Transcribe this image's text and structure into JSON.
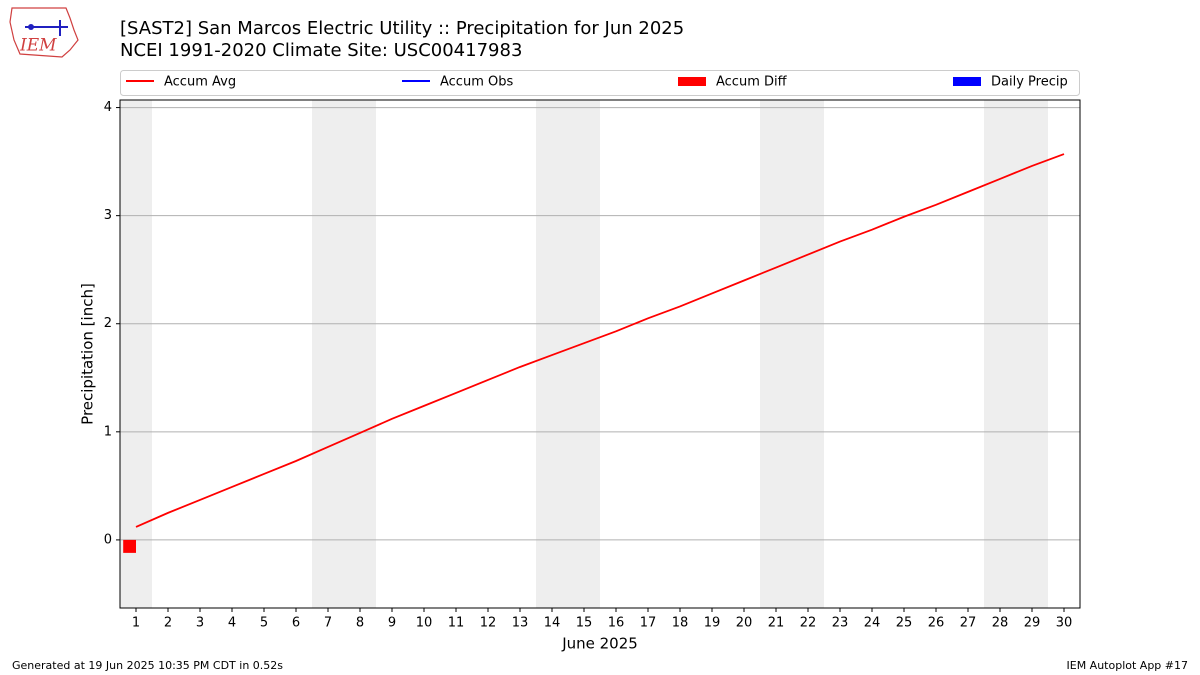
{
  "chart_data": {
    "type": "line",
    "title": "[SAST2] San Marcos Electric Utility :: Precipitation for Jun 2025",
    "subtitle": "NCEI 1991-2020 Climate Site: USC00417983",
    "x_label": "June 2025",
    "y_label": "Precipitation [inch]",
    "logo_text": "IEM",
    "footer_left": "Generated at 19 Jun 2025 10:35 PM CDT in 0.52s",
    "footer_right": "IEM Autoplot App #17",
    "x": [
      1,
      2,
      3,
      4,
      5,
      6,
      7,
      8,
      9,
      10,
      11,
      12,
      13,
      14,
      15,
      16,
      17,
      18,
      19,
      20,
      21,
      22,
      23,
      24,
      25,
      26,
      27,
      28,
      29,
      30
    ],
    "xlim": [
      0.5,
      30.5
    ],
    "xticks": [
      1,
      2,
      3,
      4,
      5,
      6,
      7,
      8,
      9,
      10,
      11,
      12,
      13,
      14,
      15,
      16,
      17,
      18,
      19,
      20,
      21,
      22,
      23,
      24,
      25,
      26,
      27,
      28,
      29,
      30
    ],
    "ylim": [
      -0.63,
      4.07
    ],
    "yticks": [
      0,
      1,
      2,
      3,
      4
    ],
    "grid": true,
    "shaded_days": [
      1,
      7,
      8,
      14,
      15,
      21,
      22,
      28,
      29
    ],
    "series": [
      {
        "name": "Accum Avg",
        "color": "#ff0000",
        "kind": "line",
        "values": [
          0.12,
          0.25,
          0.37,
          0.49,
          0.61,
          0.73,
          0.86,
          0.99,
          1.12,
          1.24,
          1.36,
          1.48,
          1.6,
          1.71,
          1.82,
          1.93,
          2.05,
          2.16,
          2.28,
          2.4,
          2.52,
          2.64,
          2.76,
          2.87,
          2.99,
          3.1,
          3.22,
          3.34,
          3.46,
          3.57
        ]
      },
      {
        "name": "Accum Obs",
        "color": "#0000ff",
        "kind": "line",
        "values": [
          0,
          null,
          null,
          null,
          null,
          null,
          null,
          null,
          null,
          null,
          null,
          null,
          null,
          null,
          null,
          null,
          null,
          null,
          null,
          null,
          null,
          null,
          null,
          null,
          null,
          null,
          null,
          null,
          null,
          null
        ]
      },
      {
        "name": "Accum Diff",
        "color": "#ff0000",
        "kind": "bar",
        "side": "left",
        "values": [
          -0.12,
          null,
          null,
          null,
          null,
          null,
          null,
          null,
          null,
          null,
          null,
          null,
          null,
          null,
          null,
          null,
          null,
          null,
          null,
          null,
          null,
          null,
          null,
          null,
          null,
          null,
          null,
          null,
          null,
          null
        ]
      },
      {
        "name": "Daily Precip",
        "color": "#0000ff",
        "kind": "bar",
        "side": "right",
        "values": [
          0,
          null,
          null,
          null,
          null,
          null,
          null,
          null,
          null,
          null,
          null,
          null,
          null,
          null,
          null,
          null,
          null,
          null,
          null,
          null,
          null,
          null,
          null,
          null,
          null,
          null,
          null,
          null,
          null,
          null
        ]
      }
    ]
  }
}
